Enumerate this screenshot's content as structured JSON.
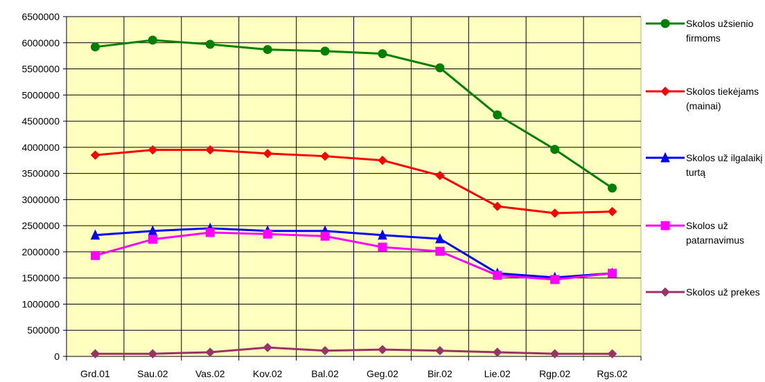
{
  "chart_data": {
    "type": "line",
    "categories": [
      "Grd.01",
      "Sau.02",
      "Vas.02",
      "Kov.02",
      "Bal.02",
      "Geg.02",
      "Bir.02",
      "Lie.02",
      "Rgp.02",
      "Rgs.02"
    ],
    "series": [
      {
        "name": "Skolos užsienio firmoms",
        "color": "#008000",
        "marker": "circle",
        "values": [
          5920000,
          6050000,
          5970000,
          5870000,
          5840000,
          5790000,
          5520000,
          4620000,
          3960000,
          3220000
        ]
      },
      {
        "name": "Skolos tiekėjams (mainai)",
        "color": "#ff0000",
        "marker": "diamond",
        "values": [
          3850000,
          3950000,
          3950000,
          3880000,
          3830000,
          3750000,
          3460000,
          2870000,
          2740000,
          2770000
        ]
      },
      {
        "name": "Skolos už ilgalaikį turtą",
        "color": "#0000ff",
        "marker": "triangle",
        "values": [
          2320000,
          2400000,
          2450000,
          2400000,
          2400000,
          2320000,
          2250000,
          1590000,
          1510000,
          1590000
        ]
      },
      {
        "name": "Skolos už patarnavimus",
        "color": "#ff00ff",
        "marker": "square",
        "values": [
          1930000,
          2240000,
          2370000,
          2340000,
          2300000,
          2090000,
          2010000,
          1550000,
          1470000,
          1590000
        ]
      },
      {
        "name": "Skolos už prekes",
        "color": "#993366",
        "marker": "diamond",
        "values": [
          50000,
          50000,
          80000,
          170000,
          110000,
          130000,
          110000,
          80000,
          50000,
          50000
        ]
      }
    ],
    "ylim": [
      0,
      6500000
    ],
    "yticks": [
      0,
      500000,
      1000000,
      1500000,
      2000000,
      2500000,
      3000000,
      3500000,
      4000000,
      4500000,
      5000000,
      5500000,
      6000000,
      6500000
    ],
    "grid": true,
    "plot_background": "#ffffc0",
    "legend": "right"
  }
}
